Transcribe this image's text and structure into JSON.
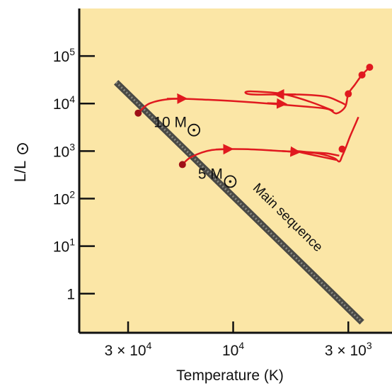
{
  "chart_data": {
    "type": "line",
    "title": "",
    "xlabel": "Temperature (K)",
    "ylabel": "L/L",
    "ylabel_symbol": "sun",
    "xscale": "log",
    "yscale": "log",
    "x_reversed": true,
    "xlim": [
      50000,
      1900
    ],
    "ylim": [
      0.15,
      1000000
    ],
    "x_ticks": [
      {
        "value": 30000,
        "label": "3 × 10",
        "sup": "4"
      },
      {
        "value": 10000,
        "label": "10",
        "sup": "4"
      },
      {
        "value": 3000,
        "label": "3 × 10",
        "sup": "3"
      }
    ],
    "y_ticks": [
      {
        "value": 100000,
        "label": "10",
        "sup": "5"
      },
      {
        "value": 10000,
        "label": "10",
        "sup": "4"
      },
      {
        "value": 1000,
        "label": "10",
        "sup": "3"
      },
      {
        "value": 100,
        "label": "10",
        "sup": "2"
      },
      {
        "value": 10,
        "label": "10",
        "sup": "1"
      },
      {
        "value": 1,
        "label": "1",
        "sup": ""
      }
    ],
    "grid": false,
    "colors": {
      "background": "#fbe6a6",
      "track": "#e0191f",
      "main_sequence": "#4a4a46",
      "axis": "#111111"
    },
    "main_sequence": {
      "label": "Main sequence",
      "points": [
        [
          34000,
          28000
        ],
        [
          2600,
          0.25
        ]
      ]
    },
    "tracks": [
      {
        "label": "10 M",
        "label_symbol": "sun",
        "start": [
          27000,
          6300
        ],
        "points": [
          [
            27000,
            6300
          ],
          [
            24000,
            10000
          ],
          [
            19000,
            12500
          ],
          [
            13000,
            12000
          ],
          [
            8000,
            10500
          ],
          [
            4500,
            8500
          ],
          [
            3700,
            7600
          ],
          [
            3400,
            6200
          ],
          [
            3100,
            8500
          ],
          [
            3000,
            16000
          ],
          [
            2800,
            25000
          ],
          [
            2600,
            40000
          ],
          [
            2400,
            58000
          ]
        ],
        "loop_points": [
          [
            3500,
            7000
          ],
          [
            4500,
            11000
          ],
          [
            6000,
            16000
          ],
          [
            8200,
            18000
          ],
          [
            8800,
            17000
          ],
          [
            8000,
            15500
          ],
          [
            5000,
            15500
          ],
          [
            3800,
            14000
          ],
          [
            3300,
            11000
          ],
          [
            3100,
            9500
          ]
        ],
        "markers": [
          [
            2600,
            40000
          ],
          [
            3000,
            16000
          ]
        ],
        "tip_marker": [
          2400,
          58000
        ]
      },
      {
        "label": "5 M",
        "label_symbol": "sun",
        "start": [
          17000,
          520
        ],
        "points": [
          [
            17000,
            520
          ],
          [
            15500,
            750
          ],
          [
            12500,
            1050
          ],
          [
            9000,
            1100
          ],
          [
            6000,
            1000
          ],
          [
            4200,
            900
          ],
          [
            3500,
            720
          ],
          [
            3300,
            600
          ],
          [
            3200,
            780
          ],
          [
            3100,
            1100
          ],
          [
            2950,
            2000
          ],
          [
            2800,
            3500
          ],
          [
            2700,
            5200
          ]
        ],
        "loop_points": [
          [
            3400,
            650
          ],
          [
            4200,
            800
          ],
          [
            5200,
            1000
          ],
          [
            4600,
            950
          ],
          [
            3800,
            900
          ],
          [
            3300,
            800
          ]
        ],
        "markers": [
          [
            3200,
            1100
          ]
        ]
      }
    ]
  }
}
